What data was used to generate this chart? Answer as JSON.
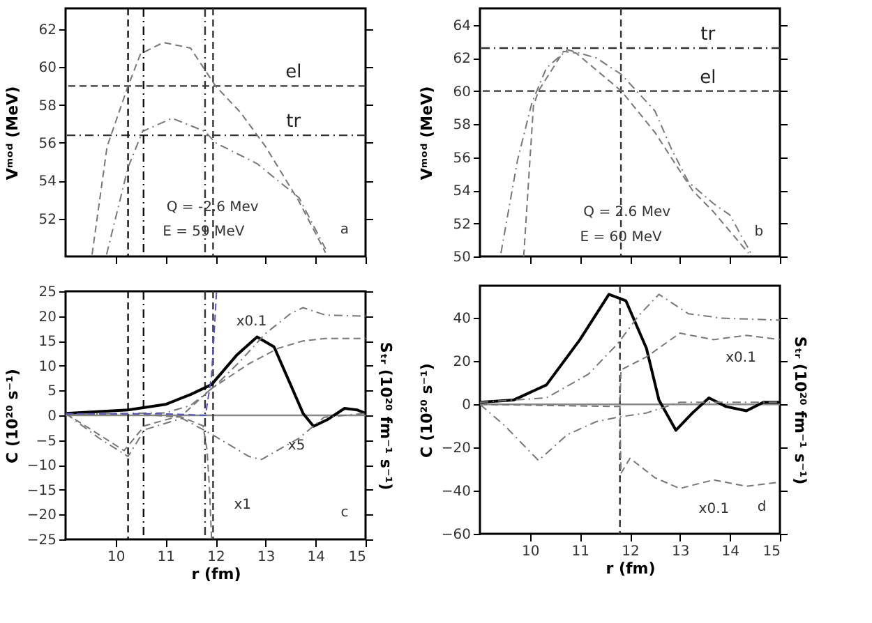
{
  "chart_data": [
    {
      "type": "line",
      "ylabel": "Vᵐᵒᵈ (MeV)",
      "xlim": [
        9,
        15
      ],
      "ylim": [
        50,
        63.1
      ],
      "xticks": [
        10,
        11,
        12,
        13,
        14,
        15
      ],
      "yticks": [
        52,
        54,
        56,
        58,
        60,
        62
      ],
      "tick_labels": "y",
      "grid": false,
      "series": [
        {
          "color": "#777777",
          "line_style": "dashed",
          "x": [
            9.53,
            9.83,
            10.25,
            10.5,
            10.96,
            11.5,
            12.0,
            12.5,
            13.0,
            13.67,
            14.2
          ],
          "values": [
            50.1,
            55.8,
            59.0,
            60.7,
            61.3,
            61.0,
            59.0,
            57.6,
            55.8,
            52.9,
            50.2
          ]
        },
        {
          "color": "#777777",
          "line_style": "dashdot",
          "x": [
            9.82,
            10.25,
            10.54,
            11.13,
            11.79,
            12.0,
            12.83,
            13.67,
            14.2
          ],
          "values": [
            50.1,
            54.7,
            56.6,
            57.3,
            56.6,
            56.0,
            54.9,
            53.1,
            50.4
          ]
        }
      ],
      "ref_lines": [
        {
          "axis": "y",
          "value": 59,
          "label": "el",
          "line_style": "dashed",
          "color": "#333333"
        },
        {
          "axis": "y",
          "value": 56.4,
          "label": "tr",
          "line_style": "dashdot",
          "color": "#333333"
        },
        {
          "axis": "x",
          "value": 10.25,
          "line_style": "dashed",
          "color": "#111111"
        },
        {
          "axis": "x",
          "value": 10.56,
          "line_style": "dashdot",
          "color": "#111111"
        },
        {
          "axis": "x",
          "value": 11.79,
          "line_style": "dashdot",
          "color": "#333333"
        },
        {
          "axis": "x",
          "value": 11.95,
          "line_style": "dashed",
          "color": "#333333"
        }
      ],
      "annotations": [
        "Q = -2.6 Mev",
        "E = 59 MeV",
        "a"
      ]
    },
    {
      "type": "line",
      "ylabel": "Vᵐᵒᵈ (MeV)",
      "xlim": [
        9,
        15
      ],
      "ylim": [
        50,
        65
      ],
      "xticks": [
        10,
        11,
        12,
        13,
        14,
        15
      ],
      "yticks": [
        50,
        52,
        54,
        56,
        58,
        60,
        62,
        64
      ],
      "tick_labels": "y",
      "grid": false,
      "series": [
        {
          "color": "#777777",
          "line_style": "dashed",
          "x": [
            9.875,
            10.07,
            10.17,
            10.67,
            10.92,
            11.83,
            12.5,
            13.25,
            13.67,
            14.37
          ],
          "values": [
            50,
            59.1,
            60.0,
            62.4,
            62.3,
            60.0,
            57.5,
            54.0,
            52.7,
            50.2
          ]
        },
        {
          "color": "#777777",
          "line_style": "dashdot",
          "x": [
            9.42,
            9.75,
            10.04,
            10.33,
            10.75,
            11.33,
            11.83,
            12.5,
            12.83,
            13.17,
            13.67,
            14.0,
            14.42
          ],
          "values": [
            50.2,
            55.8,
            59.3,
            61.4,
            62.5,
            62.0,
            61.0,
            58.8,
            56.5,
            54.5,
            53.2,
            52.5,
            50.2
          ]
        }
      ],
      "ref_lines": [
        {
          "axis": "y",
          "value": 62.6,
          "label": "tr",
          "line_style": "dashdot",
          "color": "#333333"
        },
        {
          "axis": "y",
          "value": 60,
          "label": "el",
          "line_style": "dashed",
          "color": "#333333"
        },
        {
          "axis": "x",
          "value": 11.82,
          "line_style": "dashed",
          "color": "#333333"
        }
      ],
      "annotations": [
        "Q = 2.6 Mev",
        "E = 60 MeV",
        "b"
      ]
    },
    {
      "type": "line",
      "xlabel": "r (fm)",
      "ylabel": "C (10²⁰ s⁻¹)",
      "y2label": "Sₜᵣ (10²⁰ fm⁻¹ s⁻¹)",
      "xlim": [
        9,
        15
      ],
      "ylim": [
        -25,
        25
      ],
      "xticks": [
        10,
        11,
        12,
        13,
        14,
        15
      ],
      "yticks": [
        -25,
        -20,
        -15,
        -10,
        -5,
        0,
        5,
        10,
        15,
        20,
        25
      ],
      "grid": false,
      "series": [
        {
          "color": "#000000",
          "line_style": "solid",
          "x": [
            9.0,
            10.25,
            11.0,
            11.5,
            11.92,
            12.42,
            12.83,
            13.17,
            13.5,
            13.75,
            13.96,
            14.25,
            14.58,
            14.83,
            15.0
          ],
          "values": [
            0.4,
            1.1,
            2.2,
            4.2,
            6.2,
            12.1,
            15.8,
            13.8,
            6.2,
            0.4,
            -2.2,
            -0.8,
            1.4,
            1.1,
            0.4
          ]
        },
        {
          "color": "#777777",
          "line_style": "dashdot",
          "x": [
            9.0,
            9.67,
            10.25,
            10.58,
            11.33,
            11.92,
            12.67,
            12.92,
            13.67,
            14.17,
            15.0
          ],
          "values": [
            0.4,
            -4.6,
            -8.3,
            -2.9,
            -0.6,
            -3.8,
            -8.3,
            -8.9,
            -4.6,
            -0.4,
            0.4
          ]
        },
        {
          "color": "#777777",
          "line_style": "dashdot",
          "x": [
            9.0,
            11.0,
            11.5,
            12.0,
            12.5,
            13.0,
            13.5,
            13.75,
            14.2,
            15.0
          ],
          "values": [
            0.2,
            0.5,
            2,
            6,
            11,
            16.5,
            20.5,
            21.7,
            20.2,
            20
          ]
        },
        {
          "color": "#777777",
          "line_style": "dashed",
          "x": [
            9.0,
            10.17,
            10.58,
            11.33,
            11.92,
            12.67,
            13.25,
            13.75,
            14.2,
            15.0
          ],
          "values": [
            0.4,
            -7.1,
            -2.1,
            0,
            5.4,
            10.4,
            13.5,
            15.0,
            15.5,
            15.5
          ]
        },
        {
          "color": "#777777",
          "line_style": "dashed",
          "x": [
            9.0,
            10.5,
            11.33,
            11.75,
            11.83,
            11.88,
            11.92
          ],
          "values": [
            0.3,
            0.2,
            -0.4,
            -2.1,
            -7,
            -15,
            -25
          ]
        },
        {
          "color": "#5555bb",
          "line_style": "dashed",
          "x": [
            9.0,
            11.0,
            11.8,
            11.92,
            11.98,
            12.02
          ],
          "values": [
            0.3,
            0.3,
            0,
            8,
            18,
            25
          ]
        }
      ],
      "ref_lines": [
        {
          "axis": "y",
          "value": 0,
          "line_style": "solid",
          "color": "#888888"
        },
        {
          "axis": "x",
          "value": 10.25,
          "line_style": "dashed",
          "color": "#111111"
        },
        {
          "axis": "x",
          "value": 10.56,
          "line_style": "dashdot",
          "color": "#111111"
        },
        {
          "axis": "x",
          "value": 11.79,
          "line_style": "dashdot",
          "color": "#333333"
        },
        {
          "axis": "x",
          "value": 11.95,
          "line_style": "dashed",
          "color": "#333333"
        }
      ],
      "annotations": [
        "x0.1",
        "x5",
        "x1",
        "c"
      ]
    },
    {
      "type": "line",
      "xlabel": "r (fm)",
      "ylabel": "C (10²⁰ s⁻¹)",
      "y2label": "Sₜᵣ (10²⁰ fm⁻¹ s⁻¹)",
      "xlim": [
        9,
        15
      ],
      "ylim": [
        -60,
        55
      ],
      "xticks": [
        10,
        11,
        12,
        13,
        14,
        15
      ],
      "yticks": [
        -60,
        -40,
        -20,
        0,
        20,
        40
      ],
      "grid": false,
      "series": [
        {
          "color": "#000000",
          "line_style": "solid",
          "x": [
            9.0,
            9.67,
            10.33,
            11.0,
            11.58,
            11.92,
            12.33,
            12.58,
            12.92,
            13.25,
            13.58,
            13.92,
            14.33,
            14.67,
            15.0
          ],
          "values": [
            1,
            2,
            9,
            30,
            51,
            48,
            26,
            2,
            -12,
            -4,
            3,
            -1,
            -3,
            1,
            1
          ]
        },
        {
          "color": "#777777",
          "line_style": "dashdot",
          "x": [
            9.0,
            10.33,
            11.17,
            11.75,
            12.17,
            12.58,
            13.17,
            13.83,
            15.0
          ],
          "values": [
            1,
            3,
            14,
            28,
            41,
            51,
            42,
            40,
            39
          ]
        },
        {
          "color": "#777777",
          "line_style": "dashed",
          "x": [
            9.0,
            11.8,
            11.82,
            12.33,
            13.0,
            13.67,
            14.33,
            15.0
          ],
          "values": [
            0,
            -1,
            16,
            22,
            33,
            30,
            32,
            30
          ]
        },
        {
          "color": "#777777",
          "line_style": "dashdot",
          "x": [
            9.0,
            9.5,
            10.17,
            10.75,
            11.33,
            11.75,
            12.33,
            13.0,
            15.0
          ],
          "values": [
            0,
            -10,
            -26,
            -14,
            -8,
            -6,
            -4,
            1,
            1
          ]
        },
        {
          "color": "#777777",
          "line_style": "dashed",
          "x": [
            11.8,
            11.82,
            12.0,
            12.5,
            13.0,
            13.67,
            14.33,
            15.0
          ],
          "values": [
            -1,
            -32,
            -25,
            -34,
            -39,
            -35,
            -38,
            -36
          ]
        }
      ],
      "ref_lines": [
        {
          "axis": "y",
          "value": 0,
          "line_style": "solid",
          "color": "#888888"
        },
        {
          "axis": "x",
          "value": 11.8,
          "line_style": "dashed",
          "color": "#333333"
        }
      ],
      "annotations": [
        "x0.1",
        "x0.1",
        "d"
      ]
    }
  ]
}
